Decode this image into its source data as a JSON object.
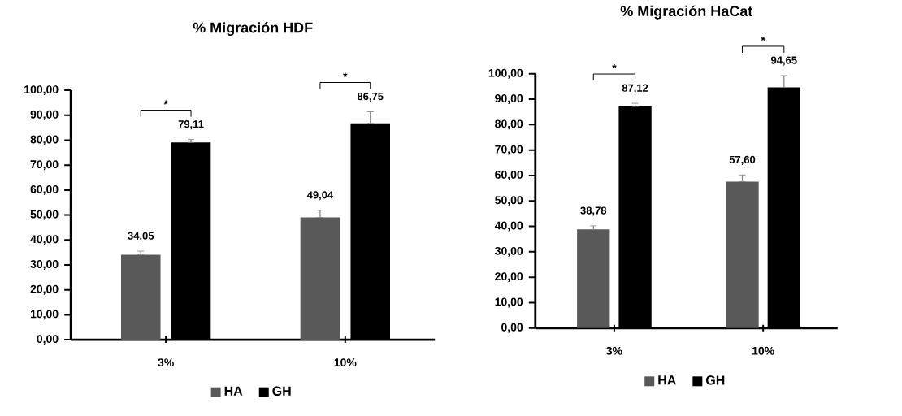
{
  "chart_data": [
    {
      "type": "bar",
      "title": "% Migración HDF",
      "categories": [
        "3%",
        "10%"
      ],
      "series": [
        {
          "name": "HA",
          "color": "#595959",
          "values": [
            34.05,
            49.04
          ],
          "errors": [
            [
              34.05,
              35.5
            ],
            [
              49.04,
              51.9
            ]
          ],
          "value_labels": [
            "34,05",
            "49,04"
          ]
        },
        {
          "name": "GH",
          "color": "#000000",
          "values": [
            79.11,
            86.75
          ],
          "errors": [
            [
              79.11,
              80.3
            ],
            [
              86.75,
              91.4
            ]
          ],
          "value_labels": [
            "79,11",
            "86,75"
          ]
        }
      ],
      "ylim": [
        0,
        100
      ],
      "yticks": [
        {
          "value": 0,
          "label": "0,00"
        },
        {
          "value": 10,
          "label": "10,00"
        },
        {
          "value": 20,
          "label": "20,00"
        },
        {
          "value": 30,
          "label": "30,00"
        },
        {
          "value": 40,
          "label": "40,00"
        },
        {
          "value": 50,
          "label": "50,00"
        },
        {
          "value": 60,
          "label": "60,00"
        },
        {
          "value": 70,
          "label": "70,00"
        },
        {
          "value": 80,
          "label": "80,00"
        },
        {
          "value": 90,
          "label": "90,00"
        },
        {
          "value": 100,
          "label": "100,00"
        }
      ],
      "legend": "bottom",
      "annotations": [
        "*",
        "*"
      ]
    },
    {
      "type": "bar",
      "title": "% Migración HaCat",
      "categories": [
        "3%",
        "10%"
      ],
      "series": [
        {
          "name": "HA",
          "color": "#595959",
          "values": [
            38.78,
            57.6
          ],
          "errors": [
            [
              38.78,
              40.2
            ],
            [
              57.6,
              60.2
            ]
          ],
          "value_labels": [
            "38,78",
            "57,60"
          ]
        },
        {
          "name": "GH",
          "color": "#000000",
          "values": [
            87.12,
            94.65
          ],
          "errors": [
            [
              87.12,
              88.4
            ],
            [
              94.65,
              99.3
            ]
          ],
          "value_labels": [
            "87,12",
            "94,65"
          ]
        }
      ],
      "ylim": [
        0,
        100
      ],
      "yticks": [
        {
          "value": 0,
          "label": "0,00"
        },
        {
          "value": 10,
          "label": "10,00"
        },
        {
          "value": 20,
          "label": "20,00"
        },
        {
          "value": 30,
          "label": "30,00"
        },
        {
          "value": 40,
          "label": "40,00"
        },
        {
          "value": 50,
          "label": "50,00"
        },
        {
          "value": 60,
          "label": "60,00"
        },
        {
          "value": 70,
          "label": "70,00"
        },
        {
          "value": 80,
          "label": "80,00"
        },
        {
          "value": 90,
          "label": "90,00"
        },
        {
          "value": 100,
          "label": "100,00"
        }
      ],
      "legend": "bottom",
      "annotations": [
        "*",
        "*"
      ]
    }
  ]
}
